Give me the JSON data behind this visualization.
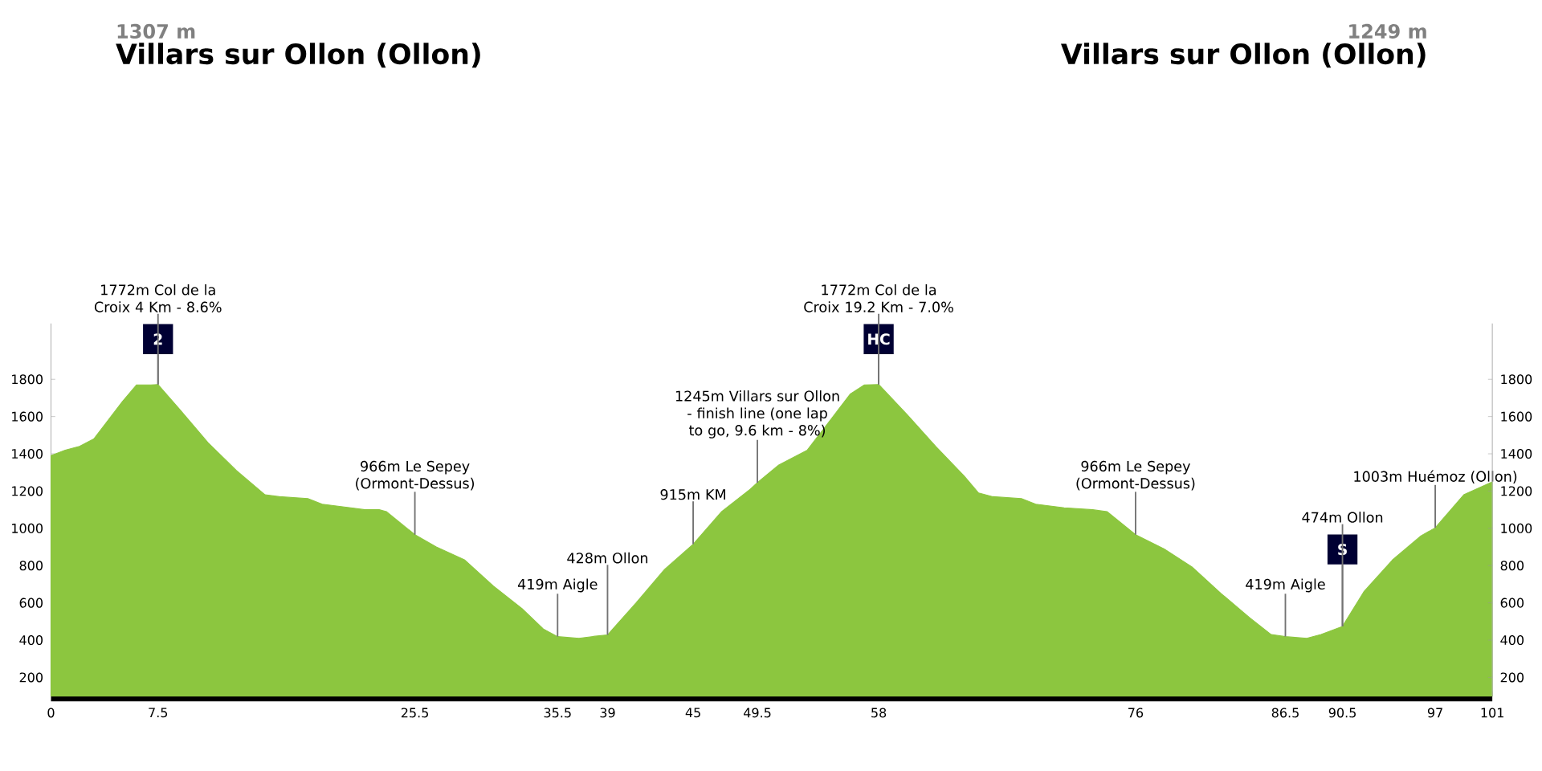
{
  "chart_data": {
    "type": "area",
    "color": "#8cc63f",
    "x": [
      0,
      1,
      2,
      3,
      4,
      5,
      6,
      7,
      7.5,
      9,
      11,
      13,
      15,
      16,
      18,
      19,
      21,
      22,
      23,
      23.5,
      25.5,
      27,
      29,
      31,
      33,
      34.5,
      35.5,
      37,
      38,
      39,
      41,
      43,
      45,
      47,
      49,
      49.5,
      51,
      52,
      53,
      54,
      55,
      56,
      57,
      58,
      60,
      62,
      64,
      65,
      66,
      68,
      69,
      71,
      73,
      74,
      76,
      78,
      80,
      82,
      84,
      85.5,
      86.5,
      88,
      89,
      90.5,
      92,
      94,
      96,
      97,
      99,
      101
    ],
    "values": [
      1390,
      1420,
      1440,
      1480,
      1580,
      1680,
      1770,
      1770,
      1772,
      1640,
      1460,
      1310,
      1180,
      1170,
      1160,
      1130,
      1110,
      1100,
      1100,
      1090,
      966,
      900,
      830,
      690,
      570,
      460,
      419,
      410,
      420,
      428,
      600,
      780,
      915,
      1090,
      1210,
      1245,
      1340,
      1380,
      1420,
      1520,
      1620,
      1720,
      1770,
      1772,
      1610,
      1440,
      1280,
      1190,
      1170,
      1160,
      1130,
      1110,
      1100,
      1090,
      966,
      890,
      790,
      650,
      520,
      430,
      419,
      410,
      430,
      474,
      660,
      830,
      960,
      1003,
      1180,
      1249
    ],
    "xlim": [
      0,
      101
    ],
    "xticks": [
      0,
      7.5,
      25.5,
      35.5,
      39,
      45,
      49.5,
      58,
      76,
      86.5,
      90.5,
      97,
      101
    ],
    "ylim": [
      100,
      2100
    ],
    "yticks": [
      200,
      400,
      600,
      800,
      1000,
      1200,
      1400,
      1600,
      1800
    ],
    "y2lim": [
      100,
      2100
    ],
    "y2ticks": [
      200,
      400,
      600,
      800,
      1000,
      1200,
      1400,
      1600,
      1800
    ],
    "annotations": [
      "1307 m",
      "Villars sur Ollon (Ollon)",
      "1249 m",
      "Villars sur Ollon (Ollon)",
      {
        "text": "2",
        "x": 7.5,
        "y": 1772
      },
      {
        "text": "1772m Col de la Croix 4 Km - 8.6%",
        "x": 7.5,
        "y": 1772
      },
      {
        "text": "966m Le Sepey (Ormont-Dessus)",
        "x": 25.5,
        "y": 966
      },
      {
        "text": "419m Aigle",
        "x": 35.5,
        "y": 419
      },
      {
        "text": "428m Ollon",
        "x": 39,
        "y": 428
      },
      {
        "text": "915m KM",
        "x": 45,
        "y": 915
      },
      {
        "text": "1245m Villars sur Ollon - finish line (one lap to go, 9.6 km - 8%)",
        "x": 49.5,
        "y": 1245
      },
      {
        "text": "HC",
        "x": 58,
        "y": 1772
      },
      {
        "text": "1772m Col de la Croix 19.2 Km - 7.0%",
        "x": 58,
        "y": 1772
      },
      {
        "text": "966m Le Sepey (Ormont-Dessus)",
        "x": 76,
        "y": 966
      },
      {
        "text": "419m Aigle",
        "x": 86.5,
        "y": 419
      },
      {
        "text": "S",
        "x": 90.5,
        "y": 474
      },
      {
        "text": "474m Ollon",
        "x": 90.5,
        "y": 474
      },
      {
        "text": "1003m Huémoz (Ollon)",
        "x": 97,
        "y": 1003
      }
    ]
  }
}
